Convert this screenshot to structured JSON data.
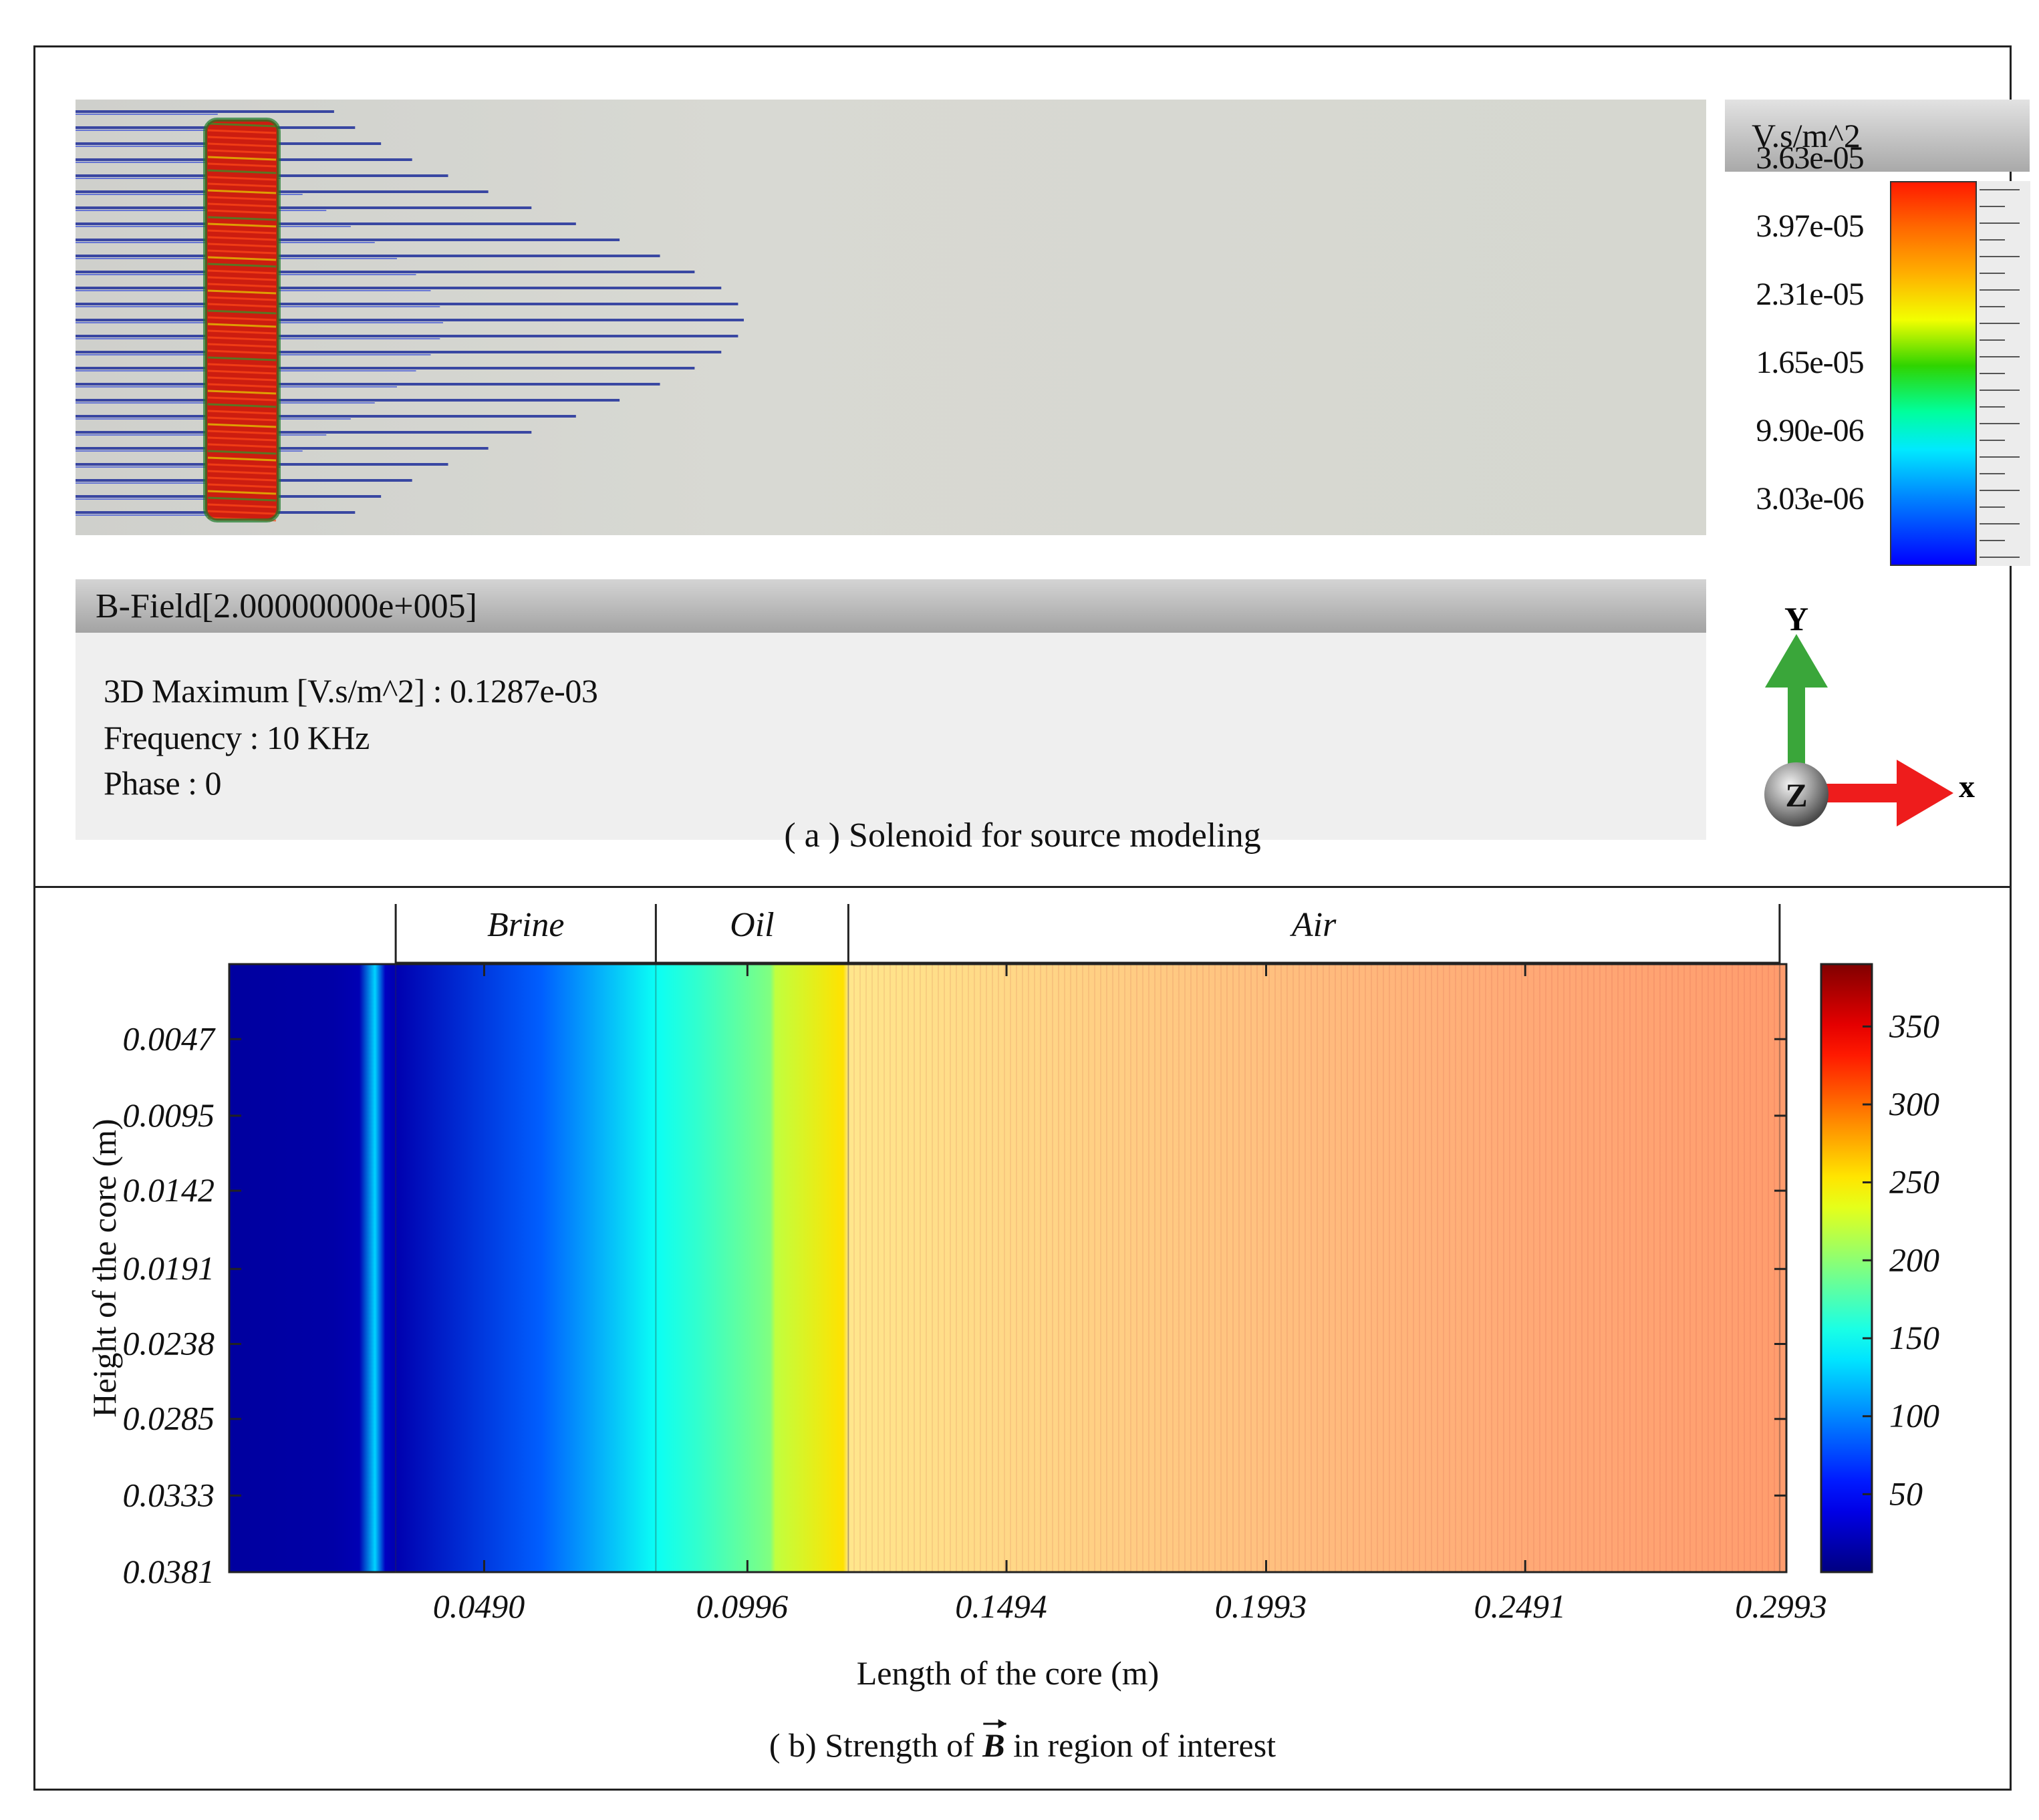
{
  "panel_a": {
    "legend_unit": "V.s/m^2",
    "legend_labels": [
      "3.63e-05",
      "3.97e-05",
      "2.31e-05",
      "1.65e-05",
      "9.90e-06",
      "3.03e-06"
    ],
    "field_bar_title": "B-Field[2.00000000e+005]",
    "info": {
      "maximum": "3D Maximum [V.s/m^2] : 0.1287e-03",
      "frequency": "Frequency : 10 KHz",
      "phase": "Phase : 0"
    },
    "axes": {
      "y": "Y",
      "z": "Z",
      "x": "x"
    },
    "caption": "( a ) Solenoid for source modeling"
  },
  "panel_b": {
    "caption_prefix": "( b) Strength of ",
    "caption_symbol": "B",
    "caption_suffix": " in region of interest"
  },
  "chart_data": {
    "type": "heatmap",
    "title": "",
    "xlabel": "Length of the core (m)",
    "ylabel": "Height of the core (m)",
    "x_tick_labels": [
      "0.0490",
      "0.0996",
      "0.1494",
      "0.1993",
      "0.2491",
      "0.2993"
    ],
    "x_ticks": [
      0.049,
      0.0996,
      0.1494,
      0.1993,
      0.2491,
      0.2993
    ],
    "y_tick_labels": [
      "0.0047",
      "0.0095",
      "0.0142",
      "0.0191",
      "0.0238",
      "0.0285",
      "0.0333",
      "0.0381"
    ],
    "y_ticks": [
      0.0047,
      0.0095,
      0.0142,
      0.0191,
      0.0238,
      0.0285,
      0.0333,
      0.0381
    ],
    "xlim": [
      0.0,
      0.2993
    ],
    "ylim": [
      0.0,
      0.0381
    ],
    "y_inverted": true,
    "regions": [
      {
        "name": "Brine",
        "x_start": 0.032,
        "x_end": 0.082
      },
      {
        "name": "Oil",
        "x_start": 0.082,
        "x_end": 0.119
      },
      {
        "name": "Air",
        "x_start": 0.119,
        "x_end": 0.298
      }
    ],
    "colorbar": {
      "ticks": [
        50,
        100,
        150,
        200,
        250,
        300,
        350
      ],
      "range": [
        0,
        390
      ],
      "colormap": "jet"
    },
    "profile_x": [
      0.0,
      0.02,
      0.025,
      0.028,
      0.03,
      0.032,
      0.06,
      0.082,
      0.09,
      0.104,
      0.105,
      0.118,
      0.119,
      0.15,
      0.2,
      0.25,
      0.298
    ],
    "profile_values": [
      12,
      15,
      20,
      130,
      25,
      18,
      85,
      150,
      165,
      195,
      220,
      255,
      265,
      275,
      292,
      305,
      310
    ],
    "colors": {
      "frame": "#222222",
      "sim_background": "#d6d7d0"
    }
  }
}
